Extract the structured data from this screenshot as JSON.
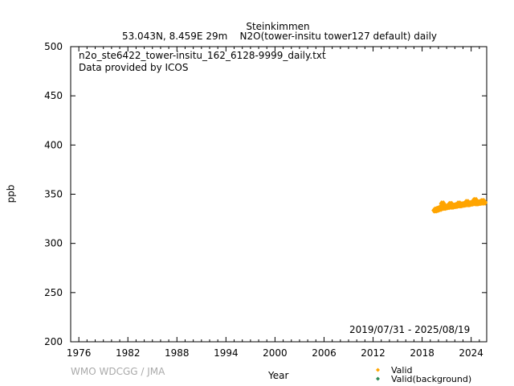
{
  "chart_data": {
    "type": "scatter",
    "title": "Steinkimmen",
    "subtitle": "53.043N, 8.459E 29m    N2O(tower-insitu tower127 default) daily",
    "filename": "n2o_ste6422_tower-insitu_162_6128-9999_daily.txt",
    "provider": "Data provided by ICOS",
    "date_range": "2019/07/31 - 2025/08/19",
    "credit": "WMO WDCGG / JMA",
    "xlabel": "Year",
    "ylabel": "ppb",
    "xlim": [
      1975,
      2025.9
    ],
    "ylim": [
      200,
      500
    ],
    "xticks": [
      1976,
      1982,
      1988,
      1994,
      2000,
      2006,
      2012,
      2018,
      2024
    ],
    "yticks": [
      200,
      250,
      300,
      350,
      400,
      450,
      500
    ],
    "legend_position": "bottom-right-below",
    "series": [
      {
        "name": "Valid",
        "color": "#FFA500",
        "x": [
          2019.58,
          2019.67,
          2019.75,
          2019.83,
          2019.92,
          2020.0,
          2020.08,
          2020.17,
          2020.25,
          2020.33,
          2020.42,
          2020.5,
          2020.58,
          2020.67,
          2020.75,
          2020.83,
          2020.92,
          2021.0,
          2021.08,
          2021.17,
          2021.25,
          2021.33,
          2021.42,
          2021.5,
          2021.58,
          2021.67,
          2021.75,
          2021.83,
          2021.92,
          2022.0,
          2022.08,
          2022.17,
          2022.25,
          2022.33,
          2022.42,
          2022.5,
          2022.58,
          2022.67,
          2022.75,
          2022.83,
          2022.92,
          2023.0,
          2023.08,
          2023.17,
          2023.25,
          2023.33,
          2023.42,
          2023.5,
          2023.58,
          2023.67,
          2023.75,
          2023.83,
          2023.92,
          2024.0,
          2024.08,
          2024.17,
          2024.25,
          2024.33,
          2024.42,
          2024.5,
          2024.58,
          2024.67,
          2024.75,
          2024.83,
          2024.92,
          2025.0,
          2025.08,
          2025.17,
          2025.25,
          2025.33,
          2025.42,
          2025.5,
          2025.58
        ],
        "y": [
          333.5,
          334.0,
          334.5,
          334.2,
          334.8,
          335.0,
          335.3,
          335.1,
          336.0,
          335.8,
          337.5,
          340.5,
          336.5,
          336.2,
          336.4,
          336.7,
          337.0,
          336.9,
          337.2,
          337.0,
          338.0,
          337.8,
          339.5,
          340.0,
          337.5,
          337.4,
          337.8,
          338.0,
          338.2,
          338.1,
          338.4,
          338.3,
          339.0,
          338.8,
          339.5,
          340.5,
          338.9,
          338.8,
          339.1,
          339.3,
          339.5,
          339.4,
          339.7,
          339.6,
          340.0,
          340.2,
          341.0,
          342.0,
          340.0,
          339.9,
          340.2,
          340.4,
          340.6,
          340.5,
          340.8,
          340.9,
          341.5,
          342.5,
          343.5,
          344.0,
          341.0,
          340.8,
          341.0,
          341.2,
          341.4,
          341.3,
          341.5,
          341.6,
          342.0,
          342.5,
          343.0,
          342.0,
          341.5
        ]
      },
      {
        "name": "Valid(background)",
        "color": "#2E8B57",
        "x": [],
        "y": []
      }
    ]
  }
}
